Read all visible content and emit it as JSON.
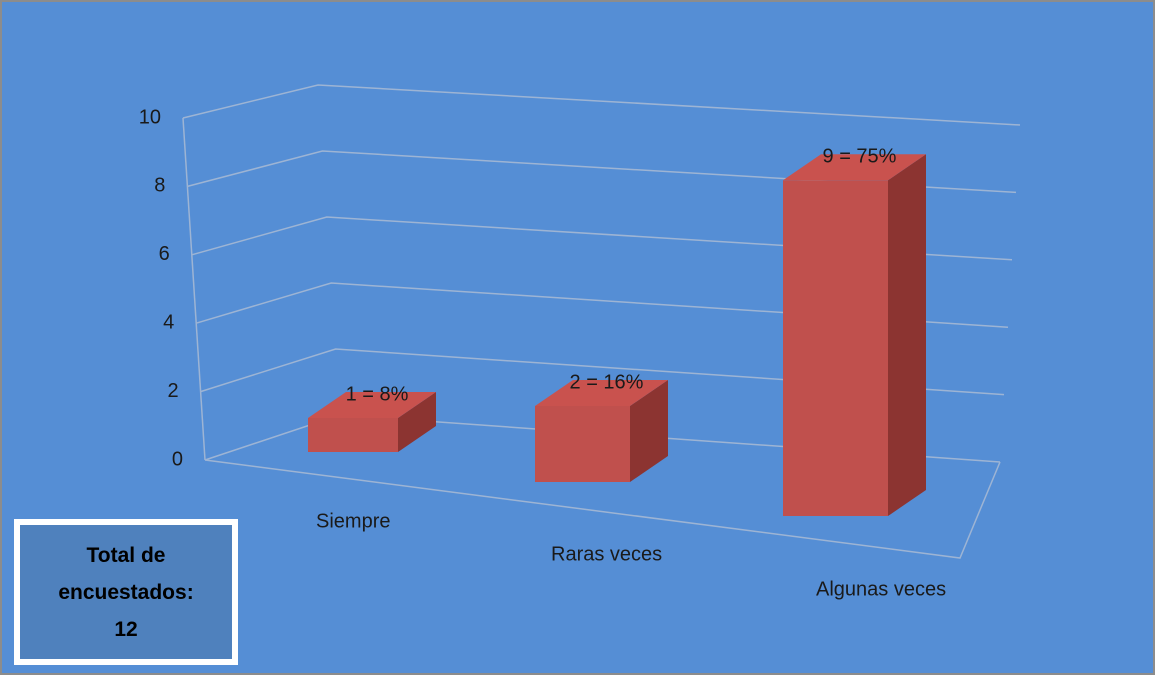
{
  "chart_data": {
    "type": "bar3d",
    "categories": [
      "Siempre",
      "Raras veces",
      "Algunas veces"
    ],
    "values": [
      1,
      2,
      9
    ],
    "value_labels": [
      "1 = 8%",
      "2 = 16%",
      "9 = 75%"
    ],
    "color": "#c0504d",
    "ylim": [
      0,
      10
    ],
    "yticks": [
      0,
      2,
      4,
      6,
      8,
      10
    ],
    "grid": true,
    "annotation": "Total de encuestados: 12"
  }
}
